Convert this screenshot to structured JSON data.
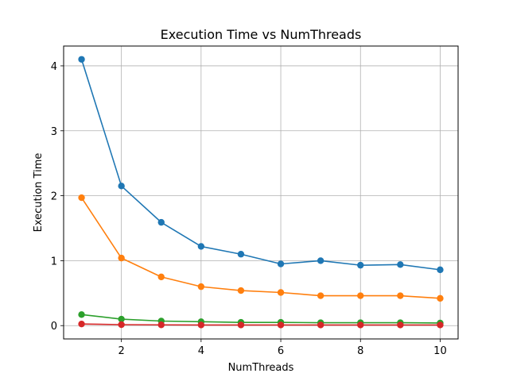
{
  "chart_data": {
    "type": "line",
    "title": "Execution Time vs NumThreads",
    "xlabel": "NumThreads",
    "ylabel": "Execution Time",
    "xlim": [
      0.55,
      10.45
    ],
    "ylim": [
      -0.205,
      4.305
    ],
    "xticks": [
      2,
      4,
      6,
      8,
      10
    ],
    "yticks": [
      0,
      1,
      2,
      3,
      4
    ],
    "grid": true,
    "x": [
      1,
      2,
      3,
      4,
      5,
      6,
      7,
      8,
      9,
      10
    ],
    "series": [
      {
        "color": "#1f77b4",
        "values": [
          4.1,
          2.15,
          1.59,
          1.22,
          1.1,
          0.95,
          1.0,
          0.93,
          0.94,
          0.86
        ]
      },
      {
        "color": "#ff7f0e",
        "values": [
          1.97,
          1.04,
          0.75,
          0.6,
          0.54,
          0.51,
          0.46,
          0.46,
          0.46,
          0.42
        ]
      },
      {
        "color": "#2ca02c",
        "values": [
          0.17,
          0.1,
          0.07,
          0.06,
          0.05,
          0.05,
          0.045,
          0.045,
          0.045,
          0.04
        ]
      },
      {
        "color": "#d62728",
        "values": [
          0.025,
          0.015,
          0.012,
          0.01,
          0.01,
          0.01,
          0.01,
          0.01,
          0.01,
          0.01
        ]
      }
    ]
  }
}
